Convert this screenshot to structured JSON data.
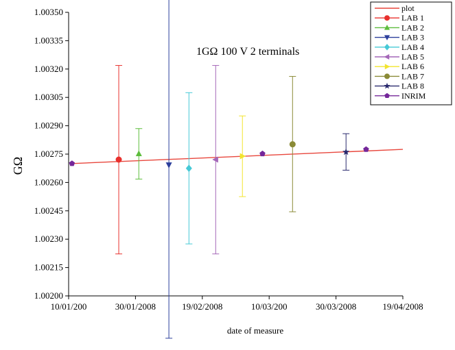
{
  "chart_data": {
    "type": "scatter",
    "title": "",
    "annotation": "1GΩ  100 V 2 terminals",
    "xlabel": "date of measure",
    "ylabel": "GΩ",
    "xlim": [
      "2008-01-10",
      "2008-04-19"
    ],
    "ylim": [
      1.002,
      1.0035
    ],
    "x_ticks": [
      "2008-01-10",
      "2008-01-30",
      "2008-02-19",
      "2008-03-10",
      "2008-03-30",
      "2008-04-19"
    ],
    "x_tick_labels": [
      "10/01/200",
      "30/01/2008",
      "19/02/2008",
      "10/03/200",
      "30/03/2008",
      "19/04/2008"
    ],
    "y_ticks": [
      1.002,
      1.00215,
      1.0023,
      1.00245,
      1.0026,
      1.00275,
      1.0029,
      1.00305,
      1.0032,
      1.00335,
      1.0035
    ],
    "y_tick_labels": [
      "1.00200",
      "1.00215",
      "1.00230",
      "1.00245",
      "1.00260",
      "1.00275",
      "1.00290",
      "1.00305",
      "1.00320",
      "1.00335",
      "1.00350"
    ],
    "grid": false,
    "legend_position": "top-right",
    "line": {
      "name": "plot",
      "color": "#e8463c",
      "x": [
        "2008-01-11",
        "2008-04-19"
      ],
      "y": [
        1.0027,
        1.002775
      ]
    },
    "series": [
      {
        "name": "LAB 1",
        "marker": "circle",
        "color": "#e8302d",
        "x": "2008-01-25",
        "y": 1.002721,
        "err_low": 1.002222,
        "err_high": 1.003219
      },
      {
        "name": "LAB 2",
        "marker": "triangle-up",
        "color": "#5cbd3c",
        "x": "2008-01-31",
        "y": 1.002752,
        "err_low": 1.002618,
        "err_high": 1.002885
      },
      {
        "name": "LAB 3",
        "marker": "triangle-down",
        "color": "#2c3f9c",
        "x": "2008-02-09",
        "y": 1.002693,
        "err_low": 1.001776,
        "err_high": 1.00361
      },
      {
        "name": "LAB 4",
        "marker": "diamond",
        "color": "#45c9d6",
        "x": "2008-02-15",
        "y": 1.002675,
        "err_low": 1.002275,
        "err_high": 1.003075
      },
      {
        "name": "LAB 5",
        "marker": "triangle-left",
        "color": "#a467b8",
        "x": "2008-02-23",
        "y": 1.002721,
        "err_low": 1.002222,
        "err_high": 1.003219
      },
      {
        "name": "LAB 6",
        "marker": "triangle-right",
        "color": "#f2e42e",
        "x": "2008-03-02",
        "y": 1.002739,
        "err_low": 1.002525,
        "err_high": 1.002952
      },
      {
        "name": "LAB 7",
        "marker": "circle",
        "color": "#8a8a36",
        "x": "2008-03-17",
        "y": 1.002802,
        "err_low": 1.002445,
        "err_high": 1.003161
      },
      {
        "name": "LAB 8",
        "marker": "star",
        "color": "#2a2a6e",
        "x": "2008-04-02",
        "y": 1.002761,
        "err_low": 1.002665,
        "err_high": 1.002858
      },
      {
        "name": "INRIM",
        "marker": "pentagon",
        "color": "#74279a",
        "x": "2008-01-11",
        "y": 1.0027
      },
      {
        "name": "INRIM",
        "marker": "pentagon",
        "color": "#74279a",
        "x": "2008-03-08",
        "y": 1.002752
      },
      {
        "name": "INRIM",
        "marker": "pentagon",
        "color": "#74279a",
        "x": "2008-04-08",
        "y": 1.002775
      }
    ],
    "legend": [
      {
        "name": "plot",
        "marker": "line",
        "color": "#e8463c"
      },
      {
        "name": "LAB 1",
        "marker": "circle",
        "color": "#e8302d"
      },
      {
        "name": "LAB 2",
        "marker": "triangle-up",
        "color": "#5cbd3c"
      },
      {
        "name": "LAB 3",
        "marker": "triangle-down",
        "color": "#2c3f9c"
      },
      {
        "name": "LAB 4",
        "marker": "diamond",
        "color": "#45c9d6"
      },
      {
        "name": "LAB 5",
        "marker": "triangle-left",
        "color": "#a467b8"
      },
      {
        "name": "LAB 6",
        "marker": "triangle-right",
        "color": "#f2e42e"
      },
      {
        "name": "LAB 7",
        "marker": "circle",
        "color": "#8a8a36"
      },
      {
        "name": "LAB 8",
        "marker": "star",
        "color": "#2a2a6e"
      },
      {
        "name": "INRIM",
        "marker": "pentagon",
        "color": "#74279a"
      }
    ]
  }
}
